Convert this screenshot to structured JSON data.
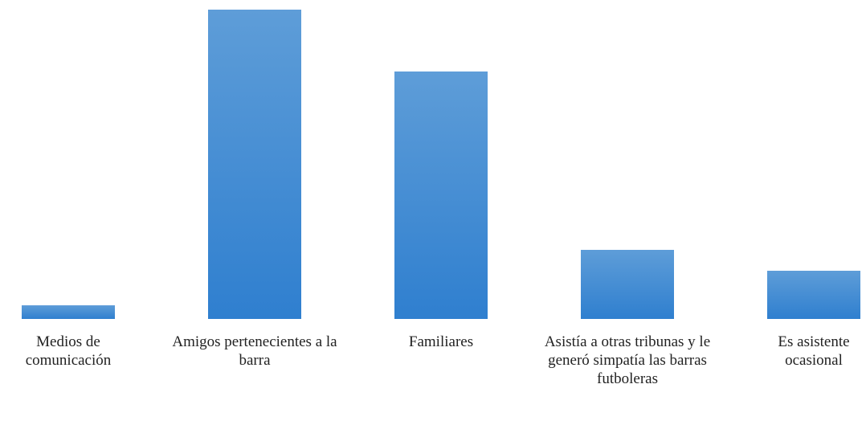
{
  "chart_data": {
    "type": "bar",
    "categories": [
      "Medios de comunicación",
      "Amigos pertenecientes a la barra",
      "Familiares",
      "Asistía a otras tribunas y le generó simpatía las barras futboleras",
      "Es asistente ocasional"
    ],
    "values": [
      2,
      45,
      36,
      10,
      7
    ],
    "color": "#3d8ad3",
    "ylim": [
      0,
      45
    ]
  }
}
